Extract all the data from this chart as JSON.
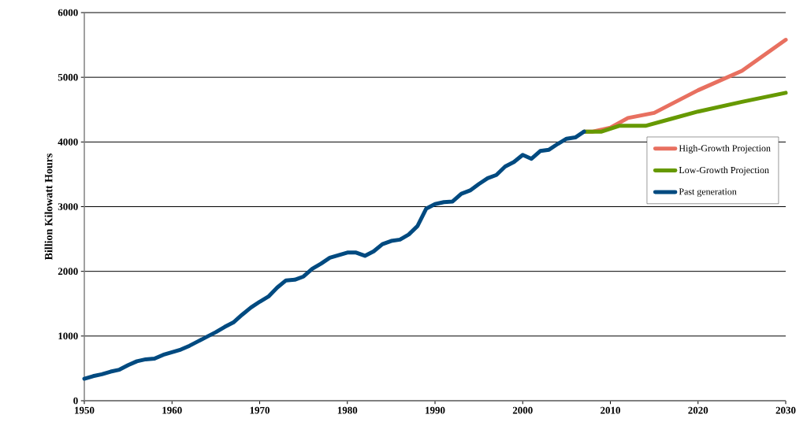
{
  "chart_data": {
    "type": "line",
    "ylabel": "Billion Kilowatt Hours",
    "xlim": [
      1950,
      2030
    ],
    "xticks": [
      1950,
      1960,
      1970,
      1980,
      1990,
      2000,
      2010,
      2020,
      2030
    ],
    "ylim": [
      0,
      6000
    ],
    "yticks": [
      0,
      1000,
      2000,
      3000,
      4000,
      5000,
      6000
    ],
    "grid": "y",
    "legend": "right",
    "marker": "none",
    "line_style": "solid",
    "series": [
      {
        "name": "High-Growth Projection",
        "color": "#e87060",
        "x": [
          2007,
          2008,
          2010,
          2012,
          2015,
          2020,
          2025,
          2030
        ],
        "values": [
          4160,
          4160,
          4220,
          4370,
          4450,
          4800,
          5100,
          5580
        ]
      },
      {
        "name": "Low-Growth Projection",
        "color": "#669900",
        "x": [
          2007,
          2009,
          2011,
          2014,
          2017,
          2020,
          2025,
          2030
        ],
        "values": [
          4160,
          4160,
          4250,
          4250,
          4360,
          4470,
          4620,
          4760
        ]
      },
      {
        "name": "Past generation",
        "color": "#004a80",
        "x": [
          1950,
          1951,
          1952,
          1953,
          1954,
          1955,
          1956,
          1957,
          1958,
          1959,
          1960,
          1961,
          1962,
          1963,
          1964,
          1965,
          1966,
          1967,
          1968,
          1969,
          1970,
          1971,
          1972,
          1973,
          1974,
          1975,
          1976,
          1977,
          1978,
          1979,
          1980,
          1981,
          1982,
          1983,
          1984,
          1985,
          1986,
          1987,
          1988,
          1989,
          1990,
          1991,
          1992,
          1993,
          1994,
          1995,
          1996,
          1997,
          1998,
          1999,
          2000,
          2001,
          2002,
          2003,
          2004,
          2005,
          2006,
          2007
        ],
        "values": [
          340,
          380,
          410,
          450,
          480,
          550,
          610,
          640,
          650,
          710,
          750,
          790,
          850,
          920,
          990,
          1060,
          1140,
          1210,
          1330,
          1440,
          1530,
          1610,
          1750,
          1860,
          1870,
          1920,
          2040,
          2120,
          2210,
          2250,
          2290,
          2290,
          2240,
          2310,
          2420,
          2470,
          2490,
          2570,
          2700,
          2970,
          3040,
          3070,
          3080,
          3200,
          3250,
          3350,
          3440,
          3490,
          3620,
          3690,
          3800,
          3740,
          3860,
          3880,
          3970,
          4050,
          4070,
          4160
        ]
      }
    ]
  }
}
